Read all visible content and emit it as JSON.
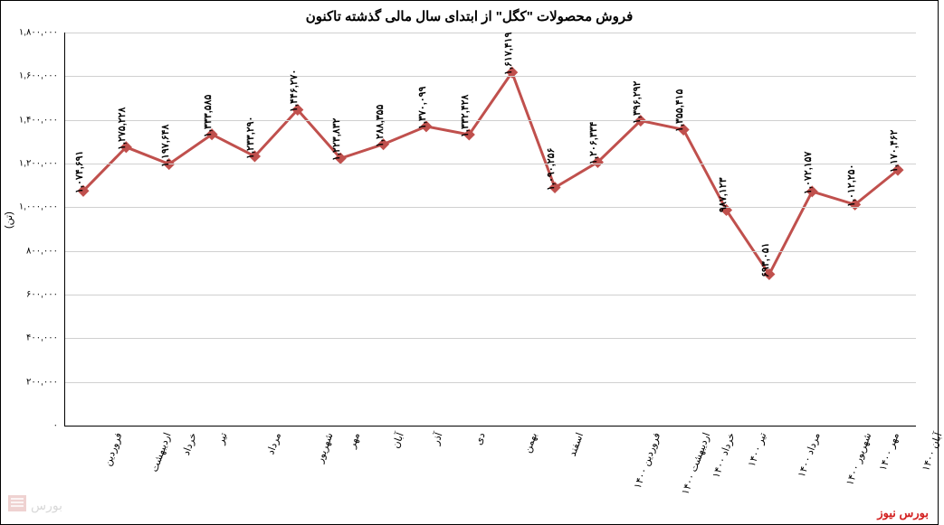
{
  "chart": {
    "type": "line",
    "title": "فروش محصولات \"کگل\" از ابتدای سال مالی گذشته تاکنون",
    "title_fontsize": 15,
    "y_axis_title": "(تن)",
    "background_color": "#ffffff",
    "grid_color": "#d0d0d0",
    "line_color": "#c0504d",
    "line_width": 3,
    "marker_style": "diamond",
    "marker_size": 7,
    "marker_color": "#c0504d",
    "label_fontsize": 11,
    "ylim": [
      0,
      1800000
    ],
    "ytick_step": 200000,
    "yticks": [
      0,
      200000,
      400000,
      600000,
      800000,
      1000000,
      1200000,
      1400000,
      1600000,
      1800000
    ],
    "ytick_labels": [
      "۰",
      "۲۰۰,۰۰۰",
      "۴۰۰,۰۰۰",
      "۶۰۰,۰۰۰",
      "۸۰۰,۰۰۰",
      "۱,۰۰۰,۰۰۰",
      "۱,۲۰۰,۰۰۰",
      "۱,۴۰۰,۰۰۰",
      "۱,۶۰۰,۰۰۰",
      "۱,۸۰۰,۰۰۰"
    ],
    "categories": [
      "فروردین",
      "اردیبهشت",
      "خرداد",
      "تیر",
      "مرداد",
      "شهریور",
      "مهر",
      "آبان",
      "آذر",
      "دی",
      "بهمن",
      "اسفند",
      "فروردین ۱۴۰۰",
      "اردیبهشت ۱۴۰۰",
      "خرداد ۱۴۰۰",
      "تیر ۱۴۰۰",
      "مرداد ۱۴۰۰",
      "شهریور ۱۴۰۰",
      "مهر ۱۴۰۰",
      "آبان ۱۴۰۰"
    ],
    "values": [
      1074691,
      1275228,
      1197648,
      1333585,
      1233290,
      1446270,
      1223832,
      1288355,
      1370099,
      1332428,
      1617419,
      1090256,
      1206334,
      1396292,
      1355415,
      987123,
      693051,
      1072157,
      1012250,
      1170462
    ],
    "value_labels": [
      "۱,۰۷۴,۶۹۱",
      "۱,۲۷۵,۲۲۸",
      "۱,۱۹۷,۶۴۸",
      "۱,۳۳۳,۵۸۵",
      "۱,۲۳۳,۲۹۰",
      "۱,۴۴۶,۲۷۰",
      "۱,۲۲۳,۸۳۲",
      "۱,۲۸۸,۳۵۵",
      "۱,۳۷۰,۰۹۹",
      "۱,۳۳۲,۴۲۸",
      "۱,۶۱۷,۴۱۹",
      "۱,۰۹۰,۲۵۶",
      "۱,۲۰۶,۳۳۴",
      "۱,۳۹۶,۲۹۲",
      "۱,۳۵۵,۴۱۵",
      "۹۸۷,۱۲۳",
      "۶۹۳,۰۵۱",
      "۱,۰۷۲,۱۵۷",
      "۱,۰۱۲,۲۵۰",
      "۱,۱۷۰,۴۶۲"
    ]
  },
  "footer": {
    "brand": "بورس نیوز"
  }
}
